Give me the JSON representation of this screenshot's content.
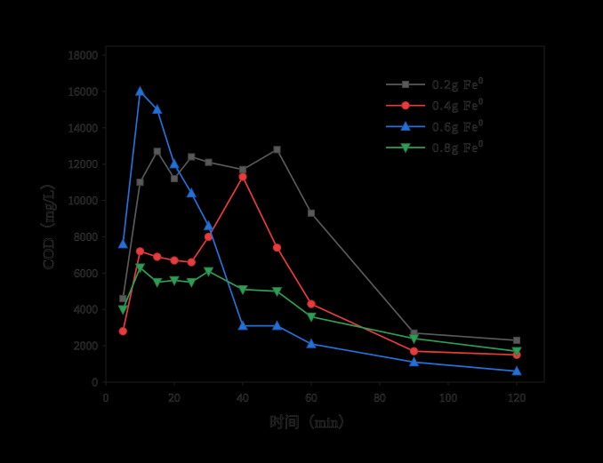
{
  "figure": {
    "background": "#000000"
  },
  "chart_data": {
    "type": "line",
    "title": "",
    "xlabel": "时间（min）",
    "ylabel": "COD（mg/L）",
    "x": [
      5,
      10,
      15,
      20,
      25,
      30,
      40,
      50,
      60,
      90,
      120
    ],
    "x_ticks": [
      0,
      20,
      40,
      60,
      80,
      100,
      120
    ],
    "y_ticks": [
      0,
      2000,
      4000,
      6000,
      8000,
      10000,
      12000,
      14000,
      16000,
      18000
    ],
    "xlim": [
      0,
      128
    ],
    "ylim": [
      0,
      18000
    ],
    "grid": false,
    "legend_position": "upper right",
    "series": [
      {
        "name": "0.2g Fe0",
        "label_main": "0.2g Fe",
        "label_sup": "0",
        "marker": "square",
        "color": "#595959",
        "marker_edge": "#3f3f3f",
        "values": [
          4600,
          11000,
          12700,
          11200,
          12400,
          12100,
          11700,
          12800,
          9300,
          2700,
          2300
        ]
      },
      {
        "name": "0.4g Fe0",
        "label_main": "0.4g Fe",
        "label_sup": "0",
        "marker": "circle",
        "color": "#e93b3b",
        "marker_edge": "#c02f2f",
        "values": [
          2800,
          7200,
          6900,
          6700,
          6600,
          8000,
          11300,
          7400,
          4300,
          1700,
          1500
        ]
      },
      {
        "name": "0.6g Fe0",
        "label_main": "0.6g Fe",
        "label_sup": "0",
        "marker": "triangle-up",
        "color": "#2371d8",
        "marker_edge": "#1c5bb4",
        "values": [
          7600,
          16000,
          15000,
          12000,
          10400,
          8600,
          3100,
          3100,
          2100,
          1100,
          600
        ]
      },
      {
        "name": "0.8g Fe0",
        "label_main": "0.8g Fe",
        "label_sup": "0",
        "marker": "triangle-down",
        "color": "#2f9e55",
        "marker_edge": "#257f43",
        "values": [
          4000,
          6300,
          5500,
          5600,
          5500,
          6100,
          5100,
          5000,
          3600,
          2400,
          1700
        ]
      }
    ]
  }
}
